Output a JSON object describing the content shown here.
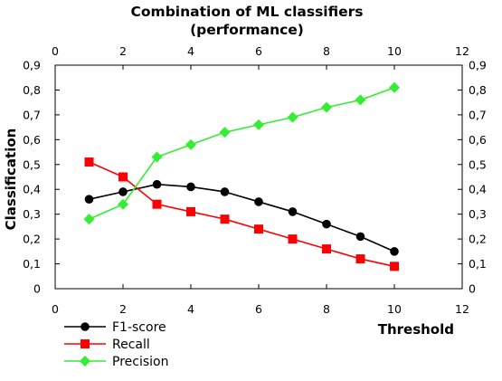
{
  "chart_data": {
    "type": "line",
    "title": "Combination of ML classifiers",
    "subtitle": "(performance)",
    "xlabel": "Threshold",
    "ylabel": "Classification",
    "xlim": [
      0,
      12
    ],
    "ylim": [
      0,
      0.9
    ],
    "x_ticks": [
      0,
      2,
      4,
      6,
      8,
      10,
      12
    ],
    "y_ticks": [
      0,
      0.1,
      0.2,
      0.3,
      0.4,
      0.5,
      0.6,
      0.7,
      0.8,
      0.9
    ],
    "x_tick_labels": [
      "0",
      "2",
      "4",
      "6",
      "8",
      "10",
      "12"
    ],
    "y_tick_labels": [
      "0",
      "0,1",
      "0,2",
      "0,3",
      "0,4",
      "0,5",
      "0,6",
      "0,7",
      "0,8",
      "0,9"
    ],
    "grid": false,
    "legend_position": "bottom-left",
    "x": [
      1,
      2,
      3,
      4,
      5,
      6,
      7,
      8,
      9,
      10
    ],
    "series": [
      {
        "name": "F1-score",
        "color": "#000000",
        "marker": "circle",
        "values": [
          0.36,
          0.39,
          0.42,
          0.41,
          0.39,
          0.35,
          0.31,
          0.26,
          0.21,
          0.15
        ]
      },
      {
        "name": "Recall",
        "color": "#ff0000",
        "marker": "square",
        "values": [
          0.51,
          0.45,
          0.34,
          0.31,
          0.28,
          0.24,
          0.2,
          0.16,
          0.12,
          0.09
        ]
      },
      {
        "name": "Precision",
        "color": "#33ee33",
        "marker": "diamond",
        "values": [
          0.28,
          0.34,
          0.53,
          0.58,
          0.63,
          0.66,
          0.69,
          0.73,
          0.76,
          0.81
        ]
      }
    ]
  }
}
